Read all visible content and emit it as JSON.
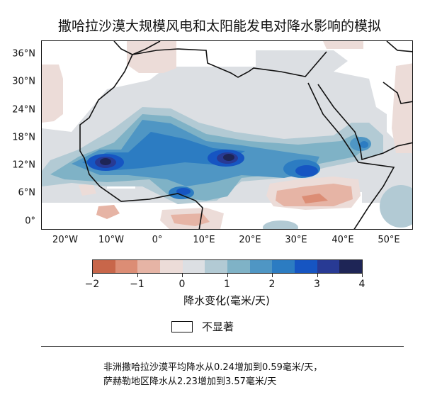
{
  "title": "撒哈拉沙漠大规模风电和太阳能发电对降水影响的模拟",
  "map": {
    "lat_labels": [
      "36°N",
      "30°N",
      "24°N",
      "18°N",
      "12°N",
      "6°N",
      "0°"
    ],
    "lon_labels": [
      "20°W",
      "10°W",
      "0°",
      "10°E",
      "20°E",
      "30°E",
      "40°E",
      "50°E"
    ],
    "region": "北非及阿拉伯半岛"
  },
  "colorbar": {
    "label": "降水变化(毫米/天)",
    "ticks": [
      "−2",
      "−1",
      "0",
      "1",
      "2",
      "3",
      "4"
    ],
    "range": [
      -2,
      4
    ],
    "step": 0.5,
    "colors": [
      "#c8664a",
      "#dc8d75",
      "#e6b4a5",
      "#ecdcd8",
      "#dcdfe3",
      "#b2cad4",
      "#7fb2c6",
      "#4f96c4",
      "#2c7cc2",
      "#1655c2",
      "#283a94",
      "#1e2556"
    ]
  },
  "legend": {
    "not_significant": "不显著"
  },
  "notes": [
    "非洲撒哈拉沙漠平均降水从0.24增加到0.59毫米/天，",
    "萨赫勒地区降水从2.23增加到3.57毫米/天"
  ]
}
